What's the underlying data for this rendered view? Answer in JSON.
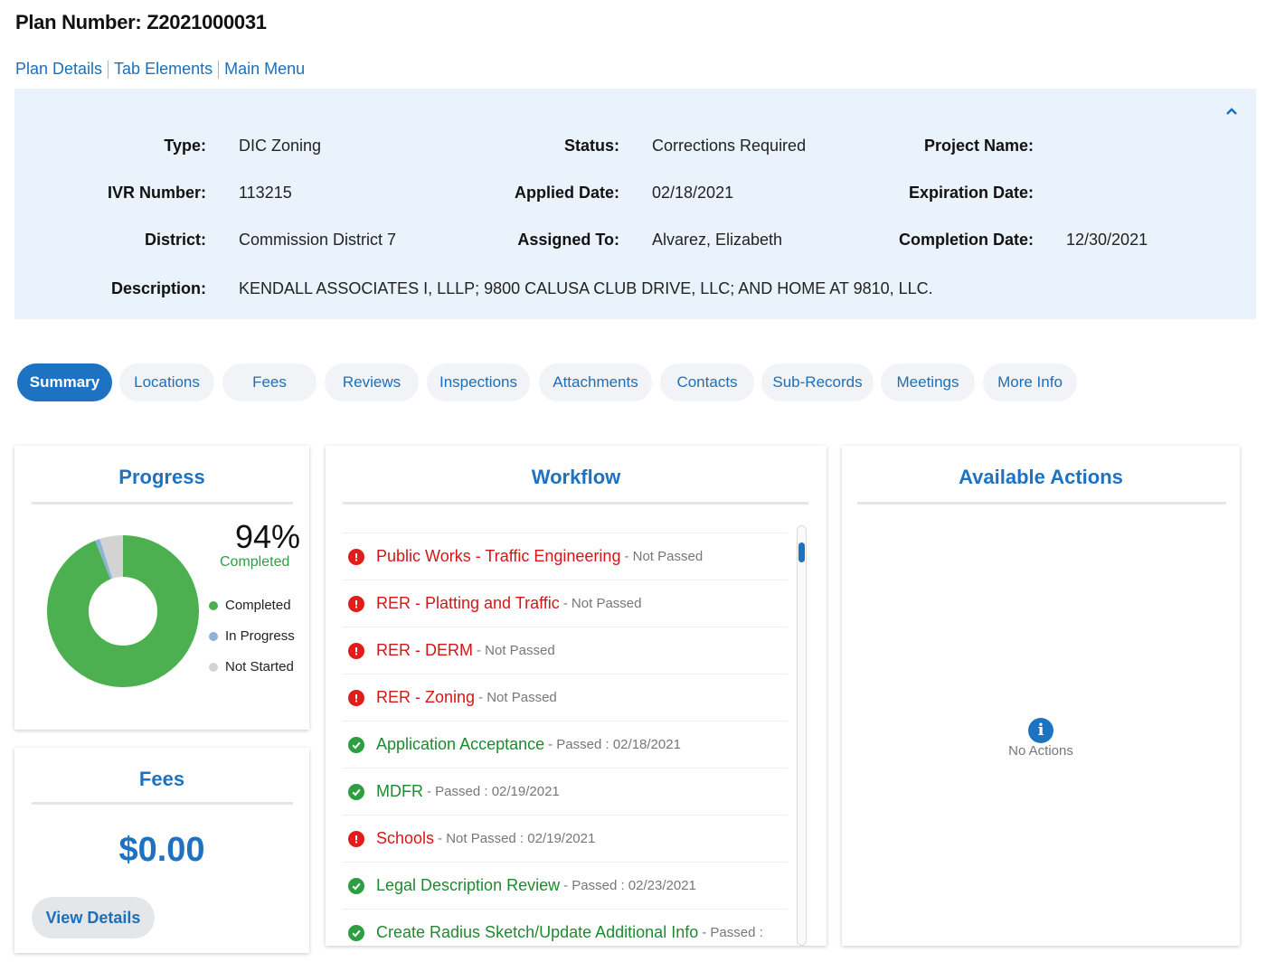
{
  "header": {
    "plan_number": "Plan Number: Z2021000031",
    "links": [
      "Plan Details",
      "Tab Elements",
      "Main Menu"
    ]
  },
  "info": {
    "type_label": "Type:",
    "type_value": "DIC Zoning",
    "ivr_label": "IVR Number:",
    "ivr_value": "113215",
    "district_label": "District:",
    "district_value": "Commission District 7",
    "description_label": "Description:",
    "description_value": "KENDALL ASSOCIATES I, LLLP; 9800 CALUSA CLUB DRIVE, LLC; AND HOME AT 9810, LLC.",
    "status_label": "Status:",
    "status_value": "Corrections Required",
    "applied_label": "Applied Date:",
    "applied_value": "02/18/2021",
    "assigned_label": "Assigned To:",
    "assigned_value": "Alvarez, Elizabeth",
    "project_label": "Project Name:",
    "project_value": "",
    "expiration_label": "Expiration Date:",
    "expiration_value": "",
    "completion_label": "Completion Date:",
    "completion_value": "12/30/2021"
  },
  "tabs": [
    "Summary",
    "Locations",
    "Fees",
    "Reviews",
    "Inspections",
    "Attachments",
    "Contacts",
    "Sub-Records",
    "Meetings",
    "More Info"
  ],
  "progress": {
    "title": "Progress",
    "percent": "94%",
    "percent_label": "Completed",
    "completed_fraction": 0.94,
    "in_progress_fraction": 0.01,
    "not_started_fraction": 0.05,
    "legend": [
      "Completed",
      "In Progress",
      "Not Started"
    ],
    "colors": {
      "completed": "#4caf50",
      "in_progress": "#8fb3d6",
      "not_started": "#d3d3d3"
    }
  },
  "fees": {
    "title": "Fees",
    "amount": "$0.00",
    "button": "View Details"
  },
  "workflow": {
    "title": "Workflow",
    "items": [
      {
        "name": "Public Works - Traffic Engineering",
        "status": "- Not Passed",
        "state": "fail"
      },
      {
        "name": "RER - Platting and Traffic",
        "status": "- Not Passed",
        "state": "fail"
      },
      {
        "name": "RER - DERM",
        "status": "- Not Passed",
        "state": "fail"
      },
      {
        "name": "RER - Zoning",
        "status": "- Not Passed",
        "state": "fail"
      },
      {
        "name": "Application Acceptance",
        "status": "- Passed : 02/18/2021",
        "state": "pass"
      },
      {
        "name": "MDFR",
        "status": "- Passed : 02/19/2021",
        "state": "pass"
      },
      {
        "name": "Schools",
        "status": "- Not Passed : 02/19/2021",
        "state": "fail"
      },
      {
        "name": "Legal Description Review",
        "status": "- Passed : 02/23/2021",
        "state": "pass"
      },
      {
        "name": "Create Radius Sketch/Update Additional Info",
        "status": "- Passed :",
        "state": "pass"
      }
    ]
  },
  "actions": {
    "title": "Available Actions",
    "empty_text": "No Actions"
  }
}
